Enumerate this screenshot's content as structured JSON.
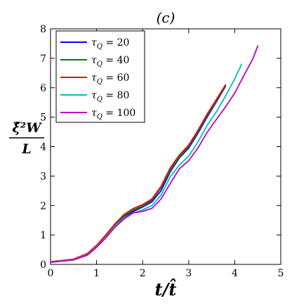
{
  "chart_data": {
    "type": "line",
    "title": "(c)",
    "xlabel": "t/t̂",
    "ylabel": {
      "numerator": "ξ̂²W",
      "denominator": "L"
    },
    "xlim": [
      0,
      5
    ],
    "ylim": [
      0,
      8
    ],
    "xticks": [
      "0",
      "1",
      "2",
      "3",
      "4",
      "5"
    ],
    "yticks": [
      "0",
      "1",
      "2",
      "3",
      "4",
      "5",
      "6",
      "7",
      "8"
    ],
    "grid": false,
    "legend": {
      "position": "top-left"
    },
    "series": [
      {
        "name": "τ_Q = 20",
        "color": "#0000ff",
        "x": [
          0,
          0.5,
          0.8,
          1.0,
          1.2,
          1.4,
          1.6,
          1.8,
          2.0,
          2.2,
          2.4,
          2.6,
          2.8,
          3.0,
          3.2,
          3.4,
          3.6,
          3.8
        ],
        "y": [
          0.08,
          0.17,
          0.35,
          0.62,
          0.95,
          1.32,
          1.62,
          1.8,
          1.95,
          2.12,
          2.5,
          3.15,
          3.62,
          3.95,
          4.45,
          5.0,
          5.52,
          6.05
        ]
      },
      {
        "name": "τ_Q = 40",
        "color": "#008000",
        "x": [
          0,
          0.5,
          0.8,
          1.0,
          1.2,
          1.4,
          1.6,
          1.8,
          2.0,
          2.2,
          2.4,
          2.6,
          2.8,
          3.0,
          3.2,
          3.4,
          3.6,
          3.8
        ],
        "y": [
          0.08,
          0.17,
          0.35,
          0.63,
          0.97,
          1.35,
          1.65,
          1.85,
          1.98,
          2.18,
          2.6,
          3.2,
          3.65,
          4.0,
          4.5,
          5.05,
          5.55,
          6.08
        ]
      },
      {
        "name": "τ_Q = 60",
        "color": "#ff0000",
        "x": [
          0,
          0.5,
          0.8,
          1.0,
          1.2,
          1.4,
          1.6,
          1.8,
          2.0,
          2.2,
          2.4,
          2.6,
          2.8,
          3.0,
          3.2,
          3.4,
          3.6,
          3.8
        ],
        "y": [
          0.09,
          0.18,
          0.37,
          0.65,
          1.0,
          1.38,
          1.7,
          1.9,
          2.03,
          2.22,
          2.65,
          3.28,
          3.72,
          4.05,
          4.55,
          5.1,
          5.6,
          6.1
        ]
      },
      {
        "name": "τ_Q = 80",
        "color": "#00bfbf",
        "x": [
          0,
          0.5,
          0.8,
          1.0,
          1.2,
          1.4,
          1.6,
          1.8,
          2.0,
          2.2,
          2.4,
          2.6,
          2.8,
          3.0,
          3.2,
          3.4,
          3.6,
          3.8,
          4.0,
          4.15
        ],
        "y": [
          0.08,
          0.16,
          0.33,
          0.6,
          0.93,
          1.3,
          1.58,
          1.75,
          1.85,
          2.0,
          2.35,
          2.98,
          3.38,
          3.68,
          4.15,
          4.72,
          5.18,
          5.72,
          6.3,
          6.8
        ]
      },
      {
        "name": "τ_Q = 100",
        "color": "#bf00bf",
        "x": [
          0,
          0.5,
          0.8,
          1.0,
          1.2,
          1.4,
          1.6,
          1.8,
          2.0,
          2.2,
          2.4,
          2.6,
          2.8,
          3.0,
          3.2,
          3.4,
          3.6,
          3.8,
          4.0,
          4.2,
          4.4,
          4.5
        ],
        "y": [
          0.07,
          0.15,
          0.31,
          0.58,
          0.9,
          1.26,
          1.55,
          1.75,
          1.8,
          1.9,
          2.22,
          2.75,
          3.25,
          3.52,
          3.95,
          4.48,
          4.92,
          5.35,
          5.82,
          6.42,
          7.0,
          7.42
        ]
      }
    ]
  }
}
